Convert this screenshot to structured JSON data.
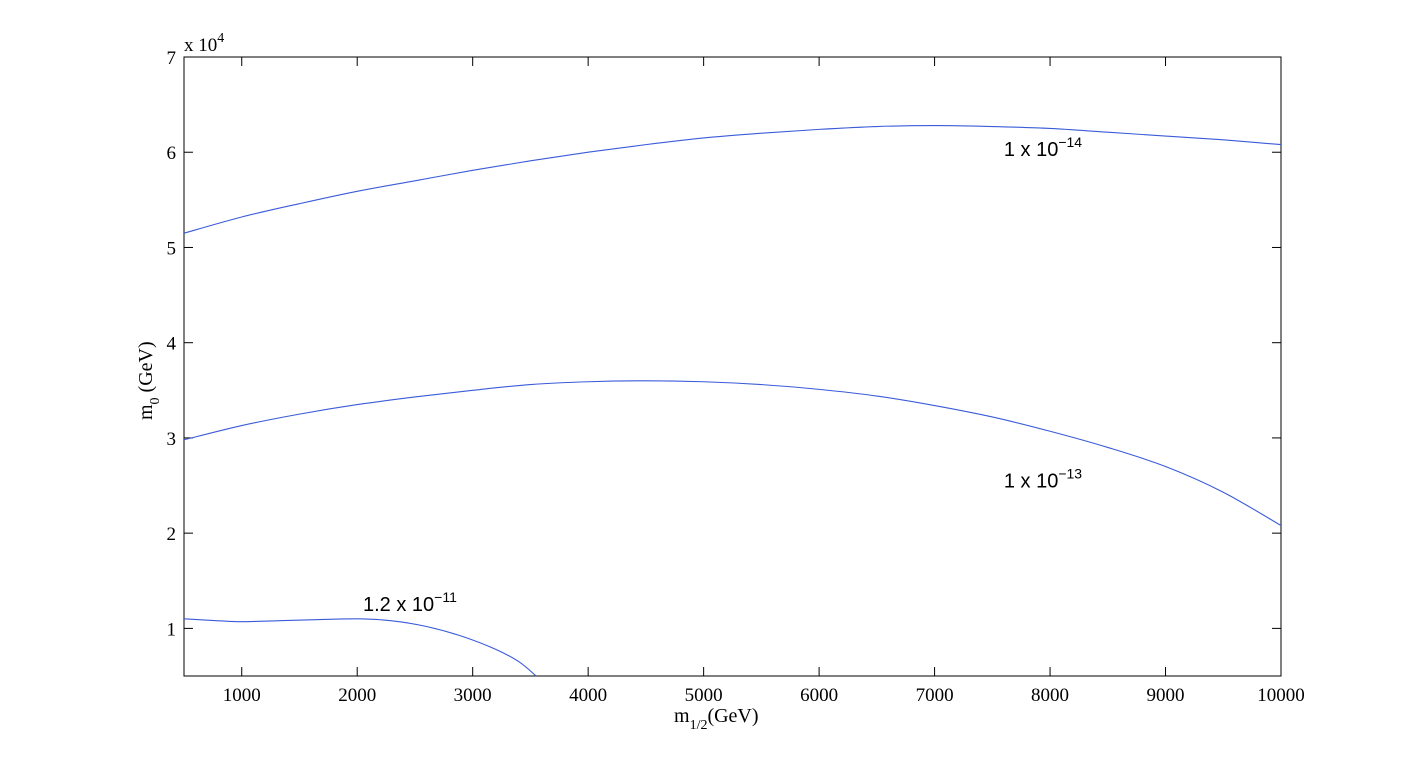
{
  "chart_data": {
    "type": "line",
    "title": "",
    "xlabel": {
      "main": "m",
      "sub": "1/2",
      "unit": "(GeV)"
    },
    "ylabel": {
      "main": "m",
      "sub": "0",
      "unit": "(GeV)"
    },
    "xlim": [
      500,
      10000
    ],
    "ylim": [
      5000,
      70000
    ],
    "y_multiplier": {
      "base": "x 10",
      "exponent": "4"
    },
    "x_ticks": [
      1000,
      2000,
      3000,
      4000,
      5000,
      6000,
      7000,
      8000,
      9000,
      10000
    ],
    "y_ticks": [
      10000,
      20000,
      30000,
      40000,
      50000,
      60000,
      70000
    ],
    "y_tick_labels": [
      "1",
      "2",
      "3",
      "4",
      "5",
      "6",
      "7"
    ],
    "grid": false,
    "color": "#3b5bd9",
    "series": [
      {
        "label": {
          "base": "1 x 10",
          "exponent": "−14"
        },
        "points": [
          [
            500,
            51500
          ],
          [
            1000,
            53200
          ],
          [
            1500,
            54600
          ],
          [
            2000,
            55900
          ],
          [
            2500,
            57000
          ],
          [
            3000,
            58100
          ],
          [
            3500,
            59100
          ],
          [
            4000,
            60000
          ],
          [
            4500,
            60800
          ],
          [
            5000,
            61500
          ],
          [
            5500,
            62000
          ],
          [
            6000,
            62400
          ],
          [
            6500,
            62700
          ],
          [
            7000,
            62800
          ],
          [
            7500,
            62700
          ],
          [
            8000,
            62500
          ],
          [
            8500,
            62100
          ],
          [
            9000,
            61700
          ],
          [
            9500,
            61300
          ],
          [
            10000,
            60800
          ]
        ]
      },
      {
        "label": {
          "base": "1 x 10",
          "exponent": "−13"
        },
        "points": [
          [
            500,
            29800
          ],
          [
            1000,
            31300
          ],
          [
            1500,
            32500
          ],
          [
            2000,
            33500
          ],
          [
            2500,
            34300
          ],
          [
            3000,
            35000
          ],
          [
            3500,
            35600
          ],
          [
            4000,
            35900
          ],
          [
            4500,
            36000
          ],
          [
            5000,
            35900
          ],
          [
            5500,
            35600
          ],
          [
            6000,
            35100
          ],
          [
            6500,
            34400
          ],
          [
            7000,
            33400
          ],
          [
            7500,
            32200
          ],
          [
            8000,
            30700
          ],
          [
            8500,
            29000
          ],
          [
            9000,
            27000
          ],
          [
            9500,
            24300
          ],
          [
            10000,
            20800
          ]
        ]
      },
      {
        "label": {
          "base": "1.2 x 10",
          "exponent": "−11"
        },
        "points": [
          [
            500,
            11000
          ],
          [
            800,
            10800
          ],
          [
            1000,
            10700
          ],
          [
            1300,
            10800
          ],
          [
            1600,
            10900
          ],
          [
            2000,
            11000
          ],
          [
            2300,
            10800
          ],
          [
            2600,
            10200
          ],
          [
            2900,
            9200
          ],
          [
            3200,
            7800
          ],
          [
            3400,
            6500
          ],
          [
            3550,
            5000
          ]
        ]
      }
    ]
  }
}
